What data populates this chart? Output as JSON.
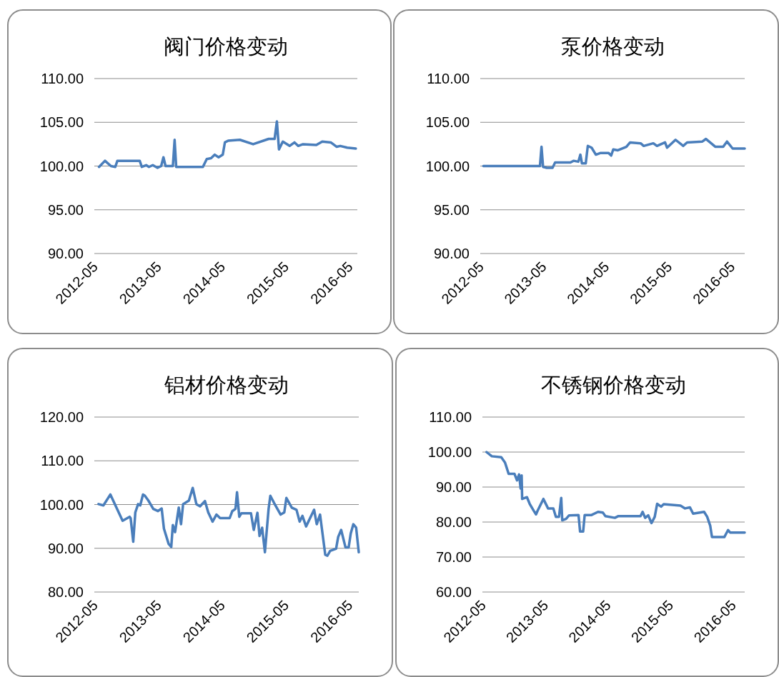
{
  "chart_data": [
    {
      "type": "line",
      "title": "阀门价格变动",
      "grid": "y",
      "xlim": [
        "2012-05-01",
        "2016-06-16"
      ],
      "xticks": [
        "2012-05",
        "2013-05",
        "2014-05",
        "2015-05",
        "2016-05"
      ],
      "ylim": [
        90,
        110
      ],
      "yticks": [
        {
          "value": 90,
          "label": "90.00"
        },
        {
          "value": 95,
          "label": "95.00"
        },
        {
          "value": 100,
          "label": "100.00"
        },
        {
          "value": 105,
          "label": "105.00"
        },
        {
          "value": 110,
          "label": "110.00"
        }
      ],
      "series": [
        {
          "color": "#4a7ebb",
          "x": [
            "2012-05-28",
            "2012-07-01",
            "2012-08-04",
            "2012-08-29",
            "2012-09-10",
            "2013-01-16",
            "2013-01-28",
            "2013-02-22",
            "2013-03-10",
            "2013-04-01",
            "2013-04-28",
            "2013-05-19",
            "2013-06-01",
            "2013-06-13",
            "2013-07-25",
            "2013-08-04",
            "2013-08-13",
            "2014-01-13",
            "2014-02-04",
            "2014-03-01",
            "2014-03-22",
            "2014-04-13",
            "2014-05-07",
            "2014-05-19",
            "2014-06-07",
            "2014-08-13",
            "2014-10-28",
            "2015-01-25",
            "2015-02-28",
            "2015-03-13",
            "2015-03-25",
            "2015-04-16",
            "2015-05-25",
            "2015-06-22",
            "2015-07-13",
            "2015-08-10",
            "2015-10-25",
            "2015-11-28",
            "2016-01-16",
            "2016-02-19",
            "2016-03-10",
            "2016-04-19",
            "2016-06-07"
          ],
          "values": [
            99.9,
            100.6,
            100.0,
            99.9,
            100.6,
            100.6,
            99.9,
            100.1,
            99.9,
            100.1,
            99.8,
            100.0,
            101.0,
            100.0,
            100.0,
            103.0,
            99.9,
            99.9,
            100.8,
            100.9,
            101.3,
            101.0,
            101.3,
            102.7,
            102.9,
            103.0,
            102.5,
            103.1,
            103.1,
            105.1,
            101.9,
            102.8,
            102.3,
            102.7,
            102.3,
            102.5,
            102.4,
            102.8,
            102.7,
            102.2,
            102.3,
            102.1,
            102.0
          ]
        }
      ]
    },
    {
      "type": "line",
      "title": "泵价格变动",
      "grid": "y",
      "xlim": [
        "2012-05-01",
        "2016-07-16"
      ],
      "xticks": [
        "2012-05",
        "2013-05",
        "2014-05",
        "2015-05",
        "2016-05"
      ],
      "ylim": [
        90,
        110
      ],
      "yticks": [
        {
          "value": 90,
          "label": "90.00"
        },
        {
          "value": 95,
          "label": "95.00"
        },
        {
          "value": 100,
          "label": "100.00"
        },
        {
          "value": 105,
          "label": "105.00"
        },
        {
          "value": 110,
          "label": "110.00"
        }
      ],
      "series": [
        {
          "color": "#4a7ebb",
          "x": [
            "2012-05-19",
            "2013-04-13",
            "2013-04-22",
            "2013-05-01",
            "2013-05-22",
            "2013-06-25",
            "2013-07-10",
            "2013-10-07",
            "2013-10-25",
            "2013-11-22",
            "2013-12-04",
            "2013-12-13",
            "2014-01-04",
            "2014-01-16",
            "2014-02-07",
            "2014-03-04",
            "2014-04-01",
            "2014-05-16",
            "2014-06-01",
            "2014-06-13",
            "2014-07-10",
            "2014-08-28",
            "2014-09-19",
            "2014-11-19",
            "2014-12-07",
            "2015-02-01",
            "2015-02-22",
            "2015-04-10",
            "2015-04-22",
            "2015-06-10",
            "2015-07-25",
            "2015-08-16",
            "2015-11-13",
            "2015-12-04",
            "2016-01-28",
            "2016-03-13",
            "2016-04-04",
            "2016-05-07",
            "2016-07-16"
          ],
          "values": [
            100.0,
            100.0,
            102.2,
            99.9,
            99.8,
            99.8,
            100.4,
            100.4,
            100.6,
            100.5,
            101.3,
            100.3,
            100.3,
            102.3,
            102.1,
            101.3,
            101.5,
            101.5,
            101.2,
            101.9,
            101.8,
            102.2,
            102.7,
            102.6,
            102.3,
            102.6,
            102.3,
            102.7,
            102.1,
            103.0,
            102.3,
            102.7,
            102.8,
            103.1,
            102.2,
            102.2,
            102.8,
            102.0,
            102.0
          ]
        }
      ]
    },
    {
      "type": "line",
      "title": "铝材价格变动",
      "grid": "y",
      "xlim": [
        "2012-05-01",
        "2016-06-25"
      ],
      "xticks": [
        "2012-05",
        "2013-05",
        "2014-05",
        "2015-05",
        "2016-05"
      ],
      "ylim": [
        80,
        120
      ],
      "yticks": [
        {
          "value": 80,
          "label": "80.00"
        },
        {
          "value": 90,
          "label": "90.00"
        },
        {
          "value": 100,
          "label": "100.00"
        },
        {
          "value": 110,
          "label": "110.00"
        },
        {
          "value": 120,
          "label": "120.00"
        }
      ],
      "series": [
        {
          "color": "#4a7ebb",
          "x": [
            "2012-05-25",
            "2012-06-22",
            "2012-08-01",
            "2012-10-10",
            "2012-11-19",
            "2012-11-25",
            "2012-12-10",
            "2012-12-22",
            "2013-01-07",
            "2013-01-19",
            "2013-02-04",
            "2013-02-15",
            "2013-03-07",
            "2013-04-04",
            "2013-05-01",
            "2013-05-22",
            "2013-06-04",
            "2013-07-01",
            "2013-07-16",
            "2013-07-25",
            "2013-08-07",
            "2013-08-28",
            "2013-09-10",
            "2013-09-22",
            "2013-10-25",
            "2013-11-16",
            "2013-12-07",
            "2013-12-28",
            "2014-01-25",
            "2014-02-13",
            "2014-03-10",
            "2014-04-01",
            "2014-04-22",
            "2014-06-16",
            "2014-07-01",
            "2014-07-19",
            "2014-07-28",
            "2014-08-10",
            "2014-08-22",
            "2014-10-16",
            "2014-11-01",
            "2014-11-22",
            "2014-12-04",
            "2014-12-19",
            "2015-01-04",
            "2015-01-25",
            "2015-02-04",
            "2015-02-25",
            "2015-04-04",
            "2015-04-25",
            "2015-05-07",
            "2015-06-07",
            "2015-07-04",
            "2015-07-22",
            "2015-08-07",
            "2015-08-28",
            "2015-10-13",
            "2015-10-28",
            "2015-11-16",
            "2015-12-16",
            "2015-12-28",
            "2016-01-13",
            "2016-02-16",
            "2016-02-28",
            "2016-03-16",
            "2016-04-10",
            "2016-04-28",
            "2016-05-10",
            "2016-05-25",
            "2016-06-10",
            "2016-06-25"
          ],
          "values": [
            100.1,
            99.8,
            102.3,
            96.3,
            97.2,
            96.9,
            91.5,
            98.2,
            100.1,
            99.8,
            102.3,
            102.0,
            100.9,
            99.0,
            98.5,
            99.1,
            94.5,
            91.0,
            90.3,
            95.3,
            93.7,
            99.3,
            95.5,
            100.1,
            100.9,
            103.8,
            100.1,
            99.6,
            100.8,
            98.2,
            96.1,
            97.7,
            96.9,
            96.9,
            98.5,
            99.0,
            102.8,
            97.2,
            98.0,
            98.0,
            94.2,
            98.1,
            92.8,
            94.7,
            89.1,
            99.0,
            102.0,
            100.4,
            97.7,
            98.2,
            101.5,
            99.3,
            98.8,
            96.1,
            97.4,
            95.0,
            98.8,
            95.5,
            97.7,
            88.5,
            88.3,
            89.4,
            89.9,
            92.6,
            94.2,
            90.2,
            90.2,
            93.4,
            95.5,
            94.7,
            89.1
          ]
        }
      ]
    },
    {
      "type": "line",
      "title": "不锈钢价格变动",
      "grid": "y",
      "xlim": [
        "2012-05-01",
        "2016-07-10"
      ],
      "xticks": [
        "2012-05",
        "2013-05",
        "2014-05",
        "2015-05",
        "2016-05"
      ],
      "ylim": [
        60,
        110
      ],
      "yticks": [
        {
          "value": 60,
          "label": "60.00"
        },
        {
          "value": 70,
          "label": "70.00"
        },
        {
          "value": 80,
          "label": "80.00"
        },
        {
          "value": 90,
          "label": "90.00"
        },
        {
          "value": 100,
          "label": "100.00"
        },
        {
          "value": 110,
          "label": "110.00"
        }
      ],
      "series": [
        {
          "color": "#4a7ebb",
          "x": [
            "2012-05-25",
            "2012-06-25",
            "2012-08-19",
            "2012-09-10",
            "2012-10-01",
            "2012-11-04",
            "2012-11-19",
            "2012-12-01",
            "2012-12-10",
            "2012-12-16",
            "2012-12-19",
            "2013-01-16",
            "2013-02-01",
            "2013-02-25",
            "2013-03-10",
            "2013-03-19",
            "2013-04-22",
            "2013-05-19",
            "2013-06-19",
            "2013-07-04",
            "2013-07-22",
            "2013-08-04",
            "2013-08-10",
            "2013-09-01",
            "2013-09-19",
            "2013-11-13",
            "2013-11-22",
            "2013-12-10",
            "2013-12-19",
            "2014-01-28",
            "2014-03-07",
            "2014-04-04",
            "2014-04-19",
            "2014-06-13",
            "2014-07-04",
            "2014-11-10",
            "2014-11-22",
            "2014-12-07",
            "2014-12-25",
            "2015-01-13",
            "2015-02-01",
            "2015-02-15",
            "2015-03-10",
            "2015-03-25",
            "2015-07-01",
            "2015-07-28",
            "2015-08-25",
            "2015-09-13",
            "2015-11-16",
            "2015-12-04",
            "2015-12-22",
            "2016-01-01",
            "2016-03-13",
            "2016-04-04",
            "2016-04-16",
            "2016-07-10"
          ],
          "values": [
            100.0,
            98.8,
            98.5,
            97.0,
            93.8,
            93.8,
            91.9,
            93.6,
            89.6,
            93.3,
            86.6,
            87.1,
            85.2,
            83.2,
            82.2,
            83.2,
            86.6,
            83.9,
            83.9,
            81.5,
            81.5,
            86.9,
            80.5,
            80.9,
            81.9,
            82.0,
            77.3,
            77.3,
            82.0,
            82.0,
            82.9,
            82.7,
            81.7,
            81.2,
            81.7,
            81.7,
            82.9,
            81.2,
            81.9,
            79.7,
            81.5,
            85.2,
            84.4,
            85.1,
            84.7,
            83.9,
            84.2,
            82.4,
            82.9,
            81.5,
            78.9,
            75.7,
            75.7,
            77.7,
            77.0,
            77.0
          ]
        }
      ]
    }
  ]
}
